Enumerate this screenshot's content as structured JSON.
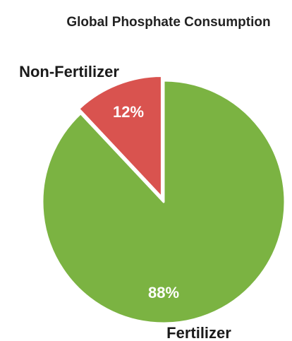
{
  "chart_data": {
    "type": "pie",
    "title": "Global Phosphate Consumption",
    "slices": [
      {
        "label": "Non-Fertilizer",
        "value": 12,
        "value_label": "12%",
        "color": "#d9534f",
        "exploded": true
      },
      {
        "label": "Fertilizer",
        "value": 88,
        "value_label": "88%",
        "color": "#7bb342",
        "exploded": false
      }
    ],
    "slice_border_color": "#ffffff",
    "start_direction": "top",
    "slice_order": "counterclockwise-from-top",
    "legend": "none"
  }
}
